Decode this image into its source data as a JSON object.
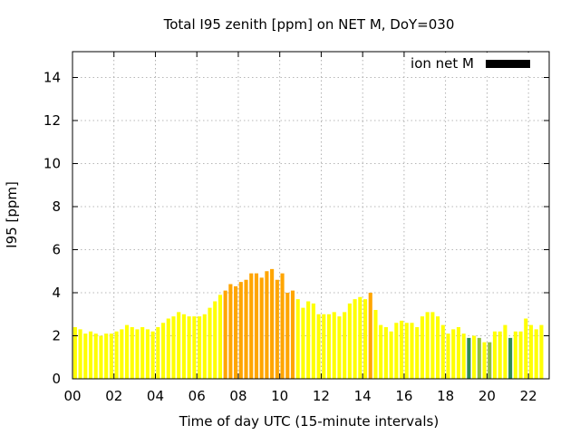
{
  "chart_data": {
    "type": "bar",
    "title": "Total I95 zenith [ppm] on NET M, DoY=030",
    "xlabel": "Time of day UTC (15-minute intervals)",
    "ylabel": "I95 [ppm]",
    "xlim": [
      0,
      23
    ],
    "ylim": [
      0,
      15.2
    ],
    "x_ticks": [
      0,
      2,
      4,
      6,
      8,
      10,
      12,
      14,
      16,
      18,
      20,
      22
    ],
    "x_tick_labels": [
      "00",
      "02",
      "04",
      "06",
      "08",
      "10",
      "12",
      "14",
      "16",
      "18",
      "20",
      "22"
    ],
    "y_ticks": [
      0,
      2,
      4,
      6,
      8,
      10,
      12,
      14
    ],
    "y_tick_labels": [
      "0",
      "2",
      "4",
      "6",
      "8",
      "10",
      "12",
      "14"
    ],
    "grid": true,
    "legend": {
      "position": "top-right",
      "entries": [
        {
          "label": "ion net M",
          "color": "#000000"
        }
      ]
    },
    "interval_hours": 0.25,
    "colors": {
      "yellow": "#ffff00",
      "orange": "#ffa500",
      "green": "#8fbc3f",
      "teal": "#2e8b57"
    },
    "values": [
      2.4,
      2.3,
      2.1,
      2.2,
      2.1,
      2.0,
      2.1,
      2.1,
      2.2,
      2.3,
      2.5,
      2.4,
      2.3,
      2.4,
      2.3,
      2.2,
      2.4,
      2.6,
      2.8,
      2.9,
      3.1,
      3.0,
      2.9,
      2.9,
      2.9,
      3.0,
      3.3,
      3.6,
      3.9,
      4.1,
      4.4,
      4.3,
      4.5,
      4.6,
      4.9,
      4.9,
      4.7,
      5.0,
      5.1,
      4.6,
      4.9,
      4.0,
      4.1,
      3.7,
      3.3,
      3.6,
      3.5,
      3.0,
      3.0,
      3.0,
      3.1,
      2.9,
      3.1,
      3.5,
      3.7,
      3.8,
      3.7,
      4.0,
      3.2,
      2.5,
      2.4,
      2.2,
      2.6,
      2.7,
      2.6,
      2.6,
      2.4,
      2.9,
      3.1,
      3.1,
      2.9,
      2.5,
      2.1,
      2.3,
      2.4,
      2.1,
      1.9,
      2.0,
      1.9,
      1.7,
      1.7,
      2.2,
      2.2,
      2.5,
      1.9,
      2.2,
      2.2,
      2.8,
      2.5,
      2.3,
      2.5
    ],
    "bar_colors": [
      "yellow",
      "yellow",
      "yellow",
      "yellow",
      "yellow",
      "yellow",
      "yellow",
      "yellow",
      "yellow",
      "yellow",
      "yellow",
      "yellow",
      "yellow",
      "yellow",
      "yellow",
      "yellow",
      "yellow",
      "yellow",
      "yellow",
      "yellow",
      "yellow",
      "yellow",
      "yellow",
      "yellow",
      "yellow",
      "yellow",
      "yellow",
      "yellow",
      "yellow",
      "orange",
      "orange",
      "orange",
      "orange",
      "orange",
      "orange",
      "orange",
      "orange",
      "orange",
      "orange",
      "orange",
      "orange",
      "orange",
      "orange",
      "yellow",
      "yellow",
      "yellow",
      "yellow",
      "yellow",
      "yellow",
      "yellow",
      "yellow",
      "yellow",
      "yellow",
      "yellow",
      "yellow",
      "yellow",
      "yellow",
      "orange",
      "yellow",
      "yellow",
      "yellow",
      "yellow",
      "yellow",
      "yellow",
      "yellow",
      "yellow",
      "yellow",
      "yellow",
      "yellow",
      "yellow",
      "yellow",
      "yellow",
      "yellow",
      "yellow",
      "yellow",
      "yellow",
      "teal",
      "yellow",
      "green",
      "yellow",
      "green",
      "yellow",
      "yellow",
      "yellow",
      "teal",
      "yellow",
      "yellow",
      "yellow",
      "yellow",
      "yellow",
      "yellow"
    ]
  }
}
